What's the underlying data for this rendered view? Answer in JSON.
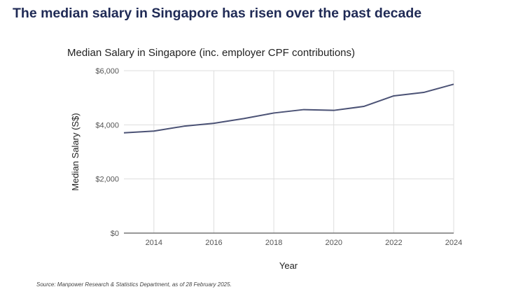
{
  "headline": "The median salary in Singapore has risen over the past decade",
  "source": "Source: Manpower Research & Statistics Department, as of 28 February 2025.",
  "chart_data": {
    "type": "line",
    "title": "Median Salary in Singapore (inc. employer CPF contributions)",
    "xlabel": "Year",
    "ylabel": "Median Salary (S$)",
    "xlim": [
      2013,
      2024
    ],
    "ylim": [
      0,
      6000
    ],
    "x_ticks": [
      2014,
      2016,
      2018,
      2020,
      2022,
      2024
    ],
    "y_ticks": [
      0,
      2000,
      4000,
      6000
    ],
    "y_tick_labels": [
      "$0",
      "$2,000",
      "$4,000",
      "$6,000"
    ],
    "grid": true,
    "line_color": "#4b5275",
    "series": [
      {
        "x": [
          2013,
          2014,
          2015,
          2016,
          2017,
          2018,
          2019,
          2020,
          2021,
          2022,
          2023,
          2024
        ],
        "values": [
          3705,
          3770,
          3949,
          4056,
          4232,
          4437,
          4563,
          4534,
          4680,
          5070,
          5197,
          5500
        ]
      }
    ]
  }
}
